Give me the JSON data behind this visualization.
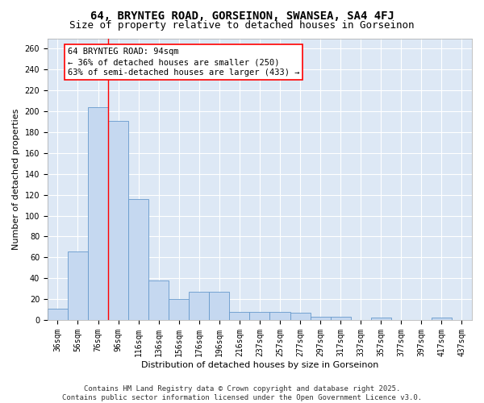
{
  "title": "64, BRYNTEG ROAD, GORSEINON, SWANSEA, SA4 4FJ",
  "subtitle": "Size of property relative to detached houses in Gorseinon",
  "xlabel": "Distribution of detached houses by size in Gorseinon",
  "ylabel": "Number of detached properties",
  "bar_color": "#c5d8f0",
  "bar_edge_color": "#6699cc",
  "background_color": "#dde8f5",
  "grid_color": "#ffffff",
  "categories": [
    "36sqm",
    "56sqm",
    "76sqm",
    "96sqm",
    "116sqm",
    "136sqm",
    "156sqm",
    "176sqm",
    "196sqm",
    "216sqm",
    "237sqm",
    "257sqm",
    "277sqm",
    "297sqm",
    "317sqm",
    "337sqm",
    "357sqm",
    "377sqm",
    "397sqm",
    "417sqm",
    "437sqm"
  ],
  "values": [
    11,
    66,
    204,
    191,
    116,
    38,
    20,
    27,
    27,
    8,
    8,
    8,
    7,
    3,
    3,
    0,
    2,
    0,
    0,
    2,
    0
  ],
  "red_line_x": 2.5,
  "annotation_text": "64 BRYNTEG ROAD: 94sqm\n← 36% of detached houses are smaller (250)\n63% of semi-detached houses are larger (433) →",
  "ylim": [
    0,
    270
  ],
  "yticks": [
    0,
    20,
    40,
    60,
    80,
    100,
    120,
    140,
    160,
    180,
    200,
    220,
    240,
    260
  ],
  "footer_text": "Contains HM Land Registry data © Crown copyright and database right 2025.\nContains public sector information licensed under the Open Government Licence v3.0.",
  "title_fontsize": 10,
  "subtitle_fontsize": 9,
  "axis_label_fontsize": 8,
  "tick_fontsize": 7,
  "annotation_fontsize": 7.5,
  "footer_fontsize": 6.5
}
